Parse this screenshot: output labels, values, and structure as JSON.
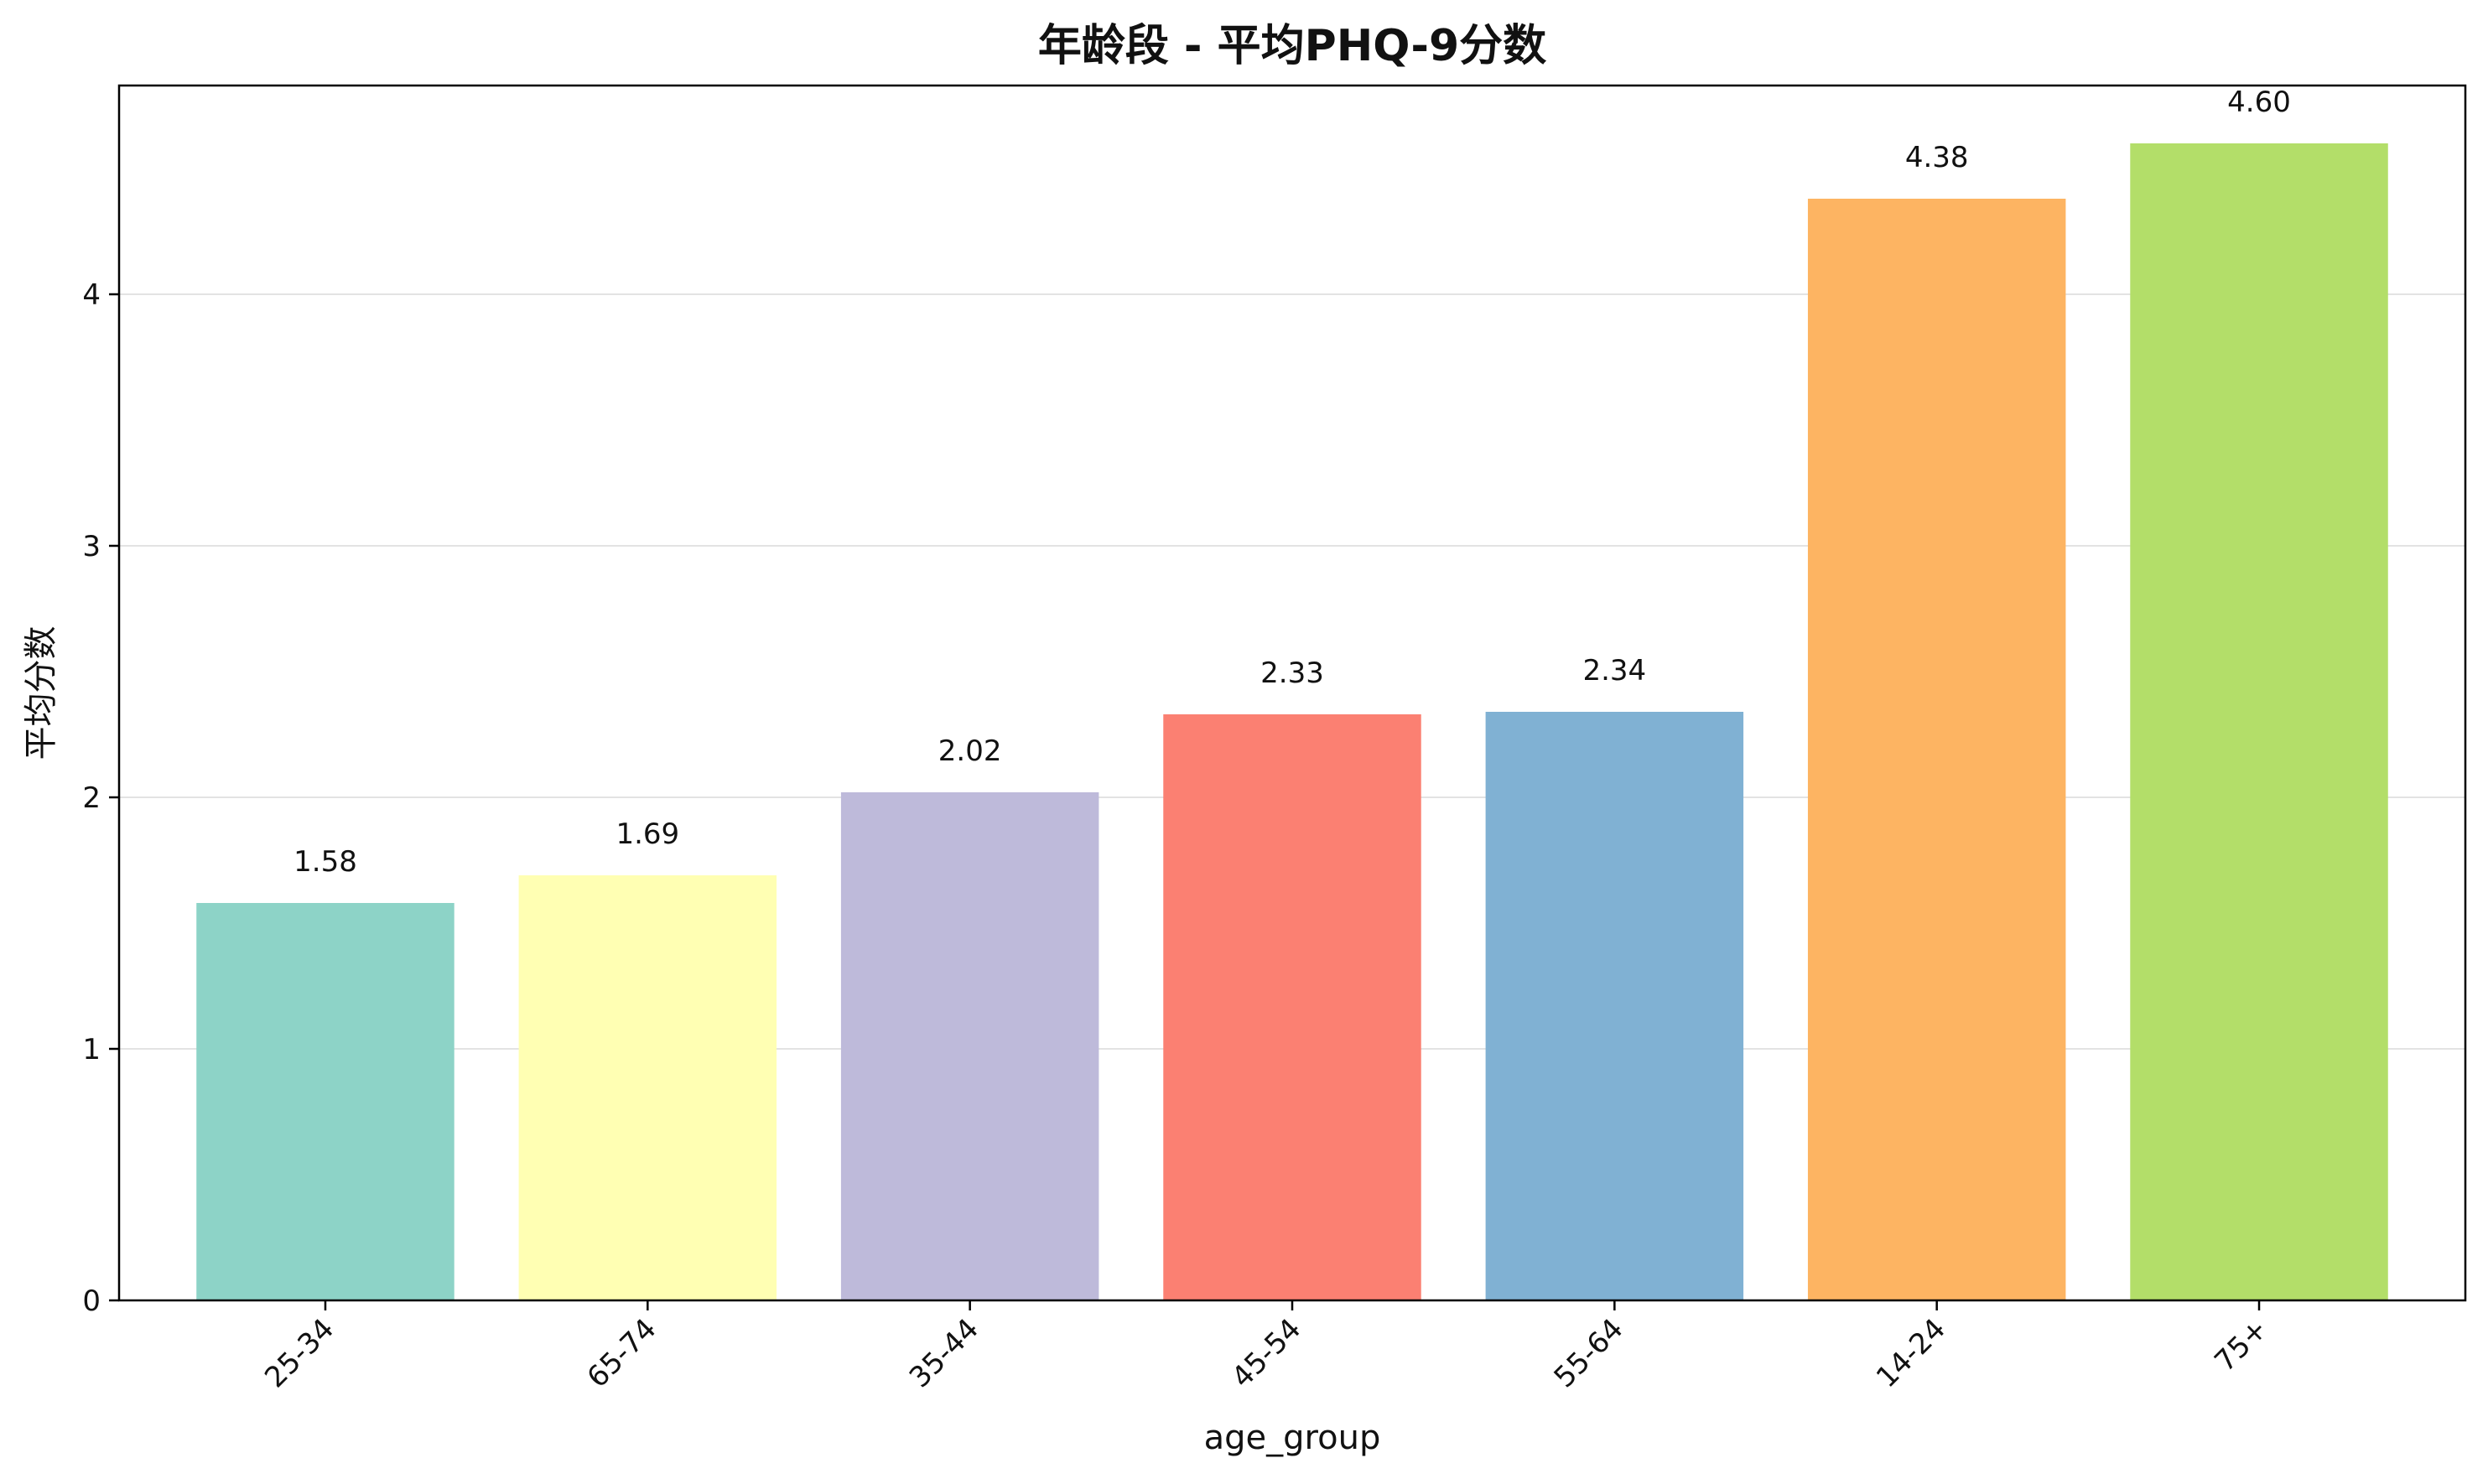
{
  "chart_data": {
    "type": "bar",
    "title": "年龄段 - 平均PHQ-9分数",
    "xlabel": "age_group",
    "ylabel": "平均分数",
    "categories": [
      "25-34",
      "65-74",
      "35-44",
      "45-54",
      "55-64",
      "14-24",
      "75+"
    ],
    "values": [
      1.58,
      1.69,
      2.02,
      2.33,
      2.34,
      4.38,
      4.6
    ],
    "data_labels": [
      "1.58",
      "1.69",
      "2.02",
      "2.33",
      "2.34",
      "4.38",
      "4.60"
    ],
    "colors": [
      "#8dd3c7",
      "#ffffb3",
      "#bebada",
      "#fb8072",
      "#80b1d3",
      "#fdb462",
      "#b3de69"
    ],
    "ylim": [
      0,
      4.83
    ],
    "yticks": [
      0,
      1,
      2,
      3,
      4
    ],
    "ytick_labels": [
      "0",
      "1",
      "2",
      "3",
      "4"
    ],
    "grid": "y",
    "xtick_rotation": -45,
    "legend": "none"
  }
}
